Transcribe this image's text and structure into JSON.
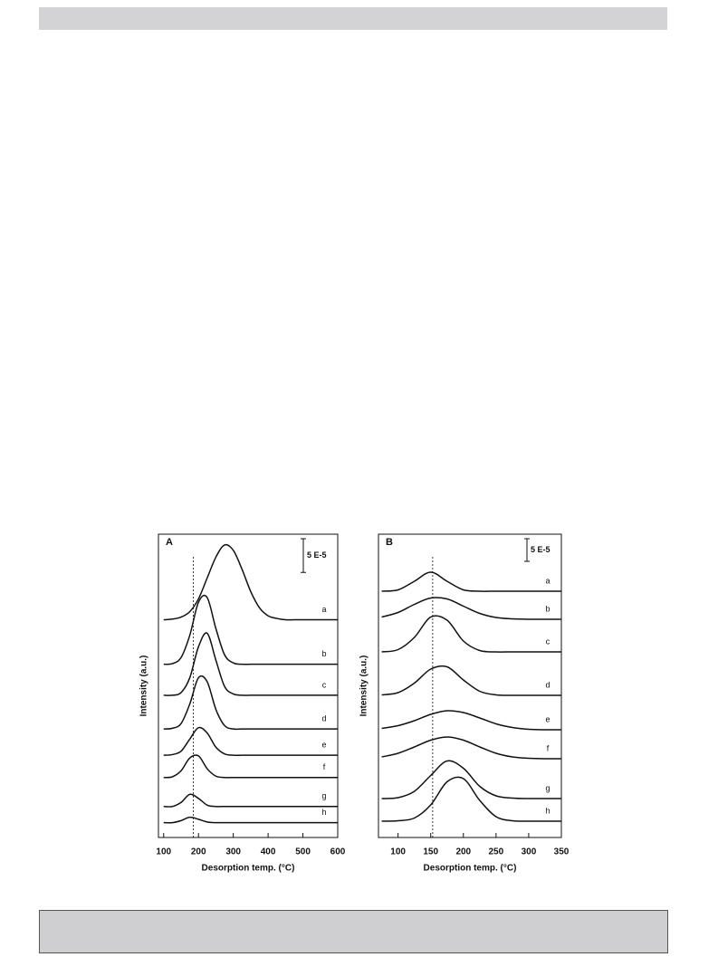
{
  "chart_data": [
    {
      "type": "line",
      "panel_label": "A",
      "x_label": "Desorption temp. (°C)",
      "y_label": "Intensity (a.u.)",
      "xlim": [
        85,
        600
      ],
      "xticks": [
        100,
        200,
        300,
        400,
        500,
        600
      ],
      "ylim": [
        0,
        45
      ],
      "scale_bar": {
        "value": 5,
        "label": "5 E-5"
      },
      "vline": 185,
      "color": "#111111",
      "x": [
        100,
        125,
        150,
        175,
        200,
        225,
        250,
        275,
        300,
        325,
        350,
        375,
        400,
        425,
        450,
        475,
        500,
        525,
        550,
        575,
        600
      ],
      "series": [
        {
          "name": "a",
          "values": [
            32.3,
            32.4,
            32.7,
            33.5,
            35.4,
            38.5,
            41.6,
            43.4,
            42.6,
            39.8,
            36.5,
            34.1,
            32.9,
            32.5,
            32.3,
            32.3,
            32.3,
            32.3,
            32.3,
            32.3,
            32.3
          ]
        },
        {
          "name": "b",
          "values": [
            25.7,
            25.8,
            26.7,
            30.0,
            34.9,
            35.6,
            31.0,
            27.1,
            25.9,
            25.7,
            25.7,
            25.7,
            25.7,
            25.7,
            25.7,
            25.7,
            25.7,
            25.7,
            25.7,
            25.7,
            25.7
          ]
        },
        {
          "name": "c",
          "values": [
            21.1,
            21.1,
            21.5,
            23.7,
            28.3,
            30.3,
            26.3,
            22.4,
            21.3,
            21.1,
            21.1,
            21.1,
            21.1,
            21.1,
            21.1,
            21.1,
            21.1,
            21.1,
            21.1,
            21.1,
            21.1
          ]
        },
        {
          "name": "d",
          "values": [
            16.1,
            16.2,
            16.9,
            19.8,
            23.7,
            23.1,
            19.0,
            16.6,
            16.1,
            16.1,
            16.1,
            16.1,
            16.1,
            16.1,
            16.1,
            16.1,
            16.1,
            16.1,
            16.1,
            16.1,
            16.1
          ]
        },
        {
          "name": "e",
          "values": [
            12.2,
            12.3,
            12.8,
            14.6,
            16.3,
            15.5,
            13.4,
            12.4,
            12.2,
            12.2,
            12.2,
            12.2,
            12.2,
            12.2,
            12.2,
            12.2,
            12.2,
            12.2,
            12.2,
            12.2,
            12.2
          ]
        },
        {
          "name": "f",
          "values": [
            8.9,
            9.0,
            9.9,
            11.8,
            12.1,
            10.2,
            9.1,
            8.9,
            8.9,
            8.9,
            8.9,
            8.9,
            8.9,
            8.9,
            8.9,
            8.9,
            8.9,
            8.9,
            8.9,
            8.9,
            8.9
          ]
        },
        {
          "name": "g",
          "values": [
            4.6,
            4.6,
            5.2,
            6.4,
            5.8,
            4.8,
            4.6,
            4.6,
            4.6,
            4.6,
            4.6,
            4.6,
            4.6,
            4.6,
            4.6,
            4.6,
            4.6,
            4.6,
            4.6,
            4.6,
            4.6
          ]
        },
        {
          "name": "h",
          "values": [
            2.2,
            2.2,
            2.5,
            3.0,
            2.7,
            2.3,
            2.2,
            2.2,
            2.2,
            2.2,
            2.2,
            2.2,
            2.2,
            2.2,
            2.2,
            2.2,
            2.2,
            2.2,
            2.2,
            2.2,
            2.2
          ]
        }
      ]
    },
    {
      "type": "line",
      "panel_label": "B",
      "x_label": "Desorption temp. (°C)",
      "y_label": "Intensity (a.u.)",
      "xlim": [
        70,
        350
      ],
      "xticks": [
        100,
        150,
        200,
        250,
        300,
        350
      ],
      "ylim": [
        0,
        67
      ],
      "scale_bar": {
        "value": 5,
        "label": "5 E-5"
      },
      "vline": 153,
      "color": "#111111",
      "x": [
        75,
        100,
        125,
        150,
        175,
        200,
        225,
        250,
        275,
        300,
        325,
        350
      ],
      "series": [
        {
          "name": "a",
          "values": [
            54.4,
            54.7,
            56.6,
            58.6,
            56.6,
            54.7,
            54.4,
            54.4,
            54.4,
            54.4,
            54.4,
            54.4
          ]
        },
        {
          "name": "b",
          "values": [
            48.7,
            49.7,
            51.5,
            52.9,
            52.7,
            51.1,
            49.5,
            48.6,
            48.3,
            48.2,
            48.2,
            48.2
          ]
        },
        {
          "name": "c",
          "values": [
            41.0,
            41.5,
            44.2,
            48.7,
            48.0,
            43.4,
            41.3,
            41.0,
            41.0,
            41.0,
            41.0,
            41.0
          ]
        },
        {
          "name": "d",
          "values": [
            31.5,
            32.0,
            34.1,
            37.2,
            37.7,
            34.8,
            32.3,
            31.5,
            31.4,
            31.4,
            31.4,
            31.4
          ]
        },
        {
          "name": "e",
          "values": [
            24.1,
            24.7,
            25.8,
            27.2,
            28.0,
            27.6,
            26.4,
            25.1,
            24.3,
            23.9,
            23.8,
            23.8
          ]
        },
        {
          "name": "f",
          "values": [
            17.8,
            18.6,
            20.0,
            21.5,
            22.2,
            21.5,
            20.0,
            18.6,
            17.8,
            17.5,
            17.4,
            17.4
          ]
        },
        {
          "name": "g",
          "values": [
            8.6,
            8.8,
            10.2,
            13.7,
            16.9,
            15.3,
            11.3,
            9.2,
            8.7,
            8.6,
            8.6,
            8.6
          ]
        },
        {
          "name": "h",
          "values": [
            3.6,
            3.7,
            4.3,
            7.2,
            12.3,
            13.0,
            8.2,
            4.6,
            3.7,
            3.6,
            3.6,
            3.6
          ]
        }
      ]
    }
  ]
}
